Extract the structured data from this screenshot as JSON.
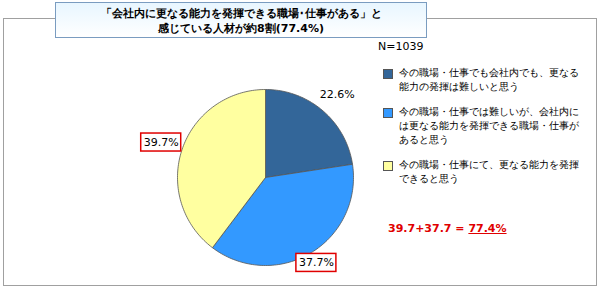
{
  "chart_data": {
    "type": "pie",
    "title": "「会社内に更なる能力を発揮できる職場･仕事がある」と\n感じている人材が約8割(77.4%)",
    "subtitle": "N=1039",
    "categories": [
      "今の職場・仕事でも会社内でも、更なる能力の発揮は難しいと思う",
      "今の職場・仕事では難しいが、会社内には更なる能力を発揮できる職場・仕事があると思う",
      "今の職場・仕事にて、更なる能力を発揮できると思う"
    ],
    "values": [
      22.6,
      37.7,
      39.7
    ],
    "value_labels": [
      "22.6%",
      "37.7%",
      "39.7%"
    ],
    "colors": [
      "#336699",
      "#3399ff",
      "#ffffa0"
    ],
    "data_labels": true,
    "annotations": [
      "39.7+37.7 = 77.4%"
    ]
  }
}
